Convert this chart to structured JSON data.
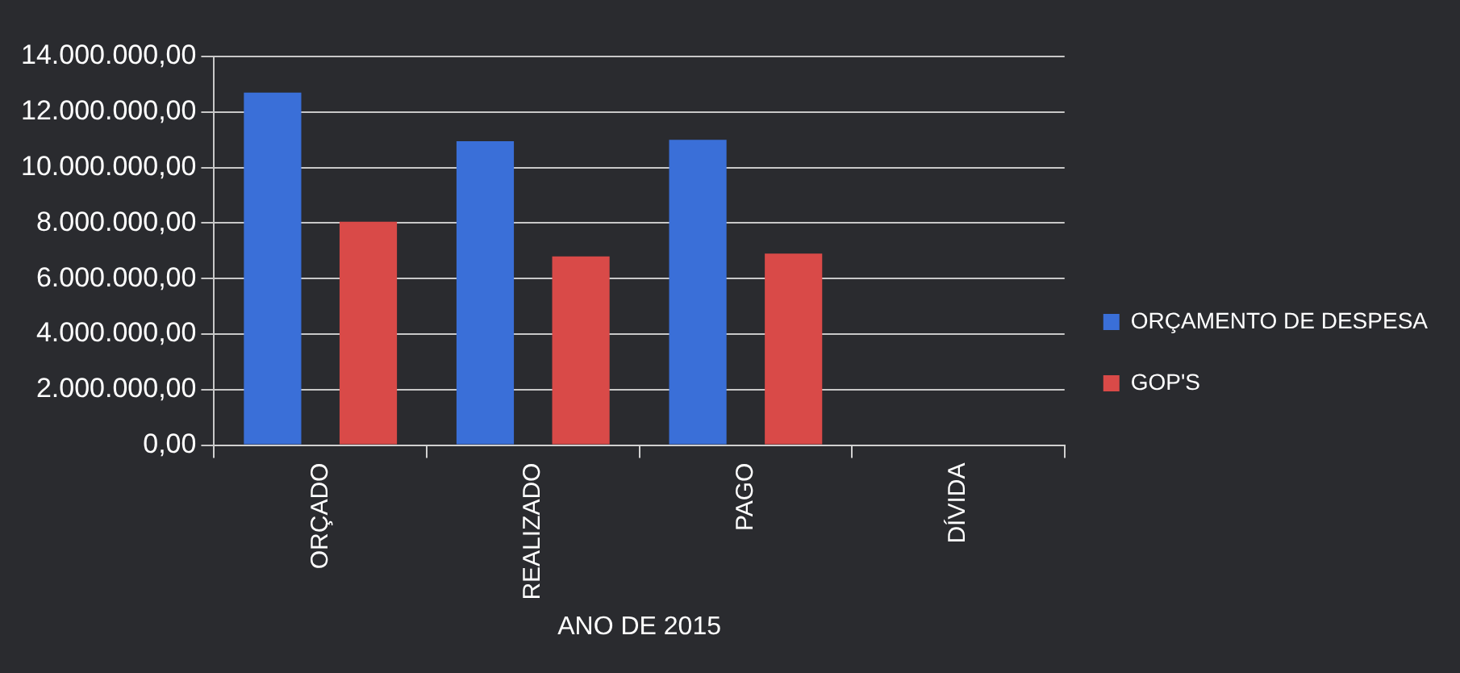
{
  "chart_data": {
    "type": "bar",
    "xlabel": "ANO DE 2015",
    "categories": [
      "ORÇADO",
      "REALIZADO",
      "PAGO",
      "DÍVIDA"
    ],
    "series": [
      {
        "name": "ORÇAMENTO DE DESPESA",
        "color": "#3a6fd8",
        "values": [
          12700000,
          10950000,
          11000000,
          0
        ]
      },
      {
        "name": "GOP'S",
        "color": "#d94a48",
        "values": [
          8050000,
          6800000,
          6900000,
          0
        ]
      }
    ],
    "ylim": [
      0,
      14000000
    ],
    "yticks": [
      {
        "value": 0,
        "label": "0,00"
      },
      {
        "value": 2000000,
        "label": "2.000.000,00"
      },
      {
        "value": 4000000,
        "label": "4.000.000,00"
      },
      {
        "value": 6000000,
        "label": "6.000.000,00"
      },
      {
        "value": 8000000,
        "label": "8.000.000,00"
      },
      {
        "value": 10000000,
        "label": "10.000.000,00"
      },
      {
        "value": 12000000,
        "label": "12.000.000,00"
      },
      {
        "value": 14000000,
        "label": "14.000.000,00"
      }
    ],
    "grid": "y",
    "legend": "right"
  }
}
